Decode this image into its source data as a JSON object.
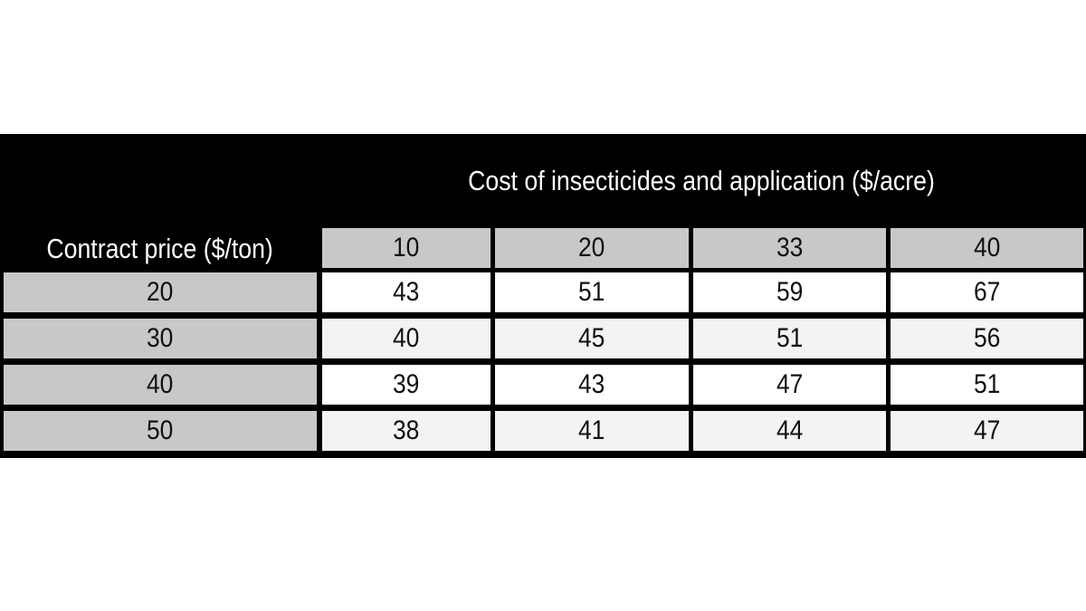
{
  "chart_data": {
    "type": "table",
    "column_title": "Cost of insecticides and application ($/acre)",
    "row_title": "Contract price ($/ton)",
    "columns": [
      "10",
      "20",
      "33",
      "40"
    ],
    "rows": [
      {
        "label": "20",
        "values": [
          "43",
          "51",
          "59",
          "67"
        ]
      },
      {
        "label": "30",
        "values": [
          "40",
          "45",
          "51",
          "56"
        ]
      },
      {
        "label": "40",
        "values": [
          "39",
          "43",
          "47",
          "51"
        ]
      },
      {
        "label": "50",
        "values": [
          "38",
          "41",
          "44",
          "47"
        ]
      }
    ]
  }
}
